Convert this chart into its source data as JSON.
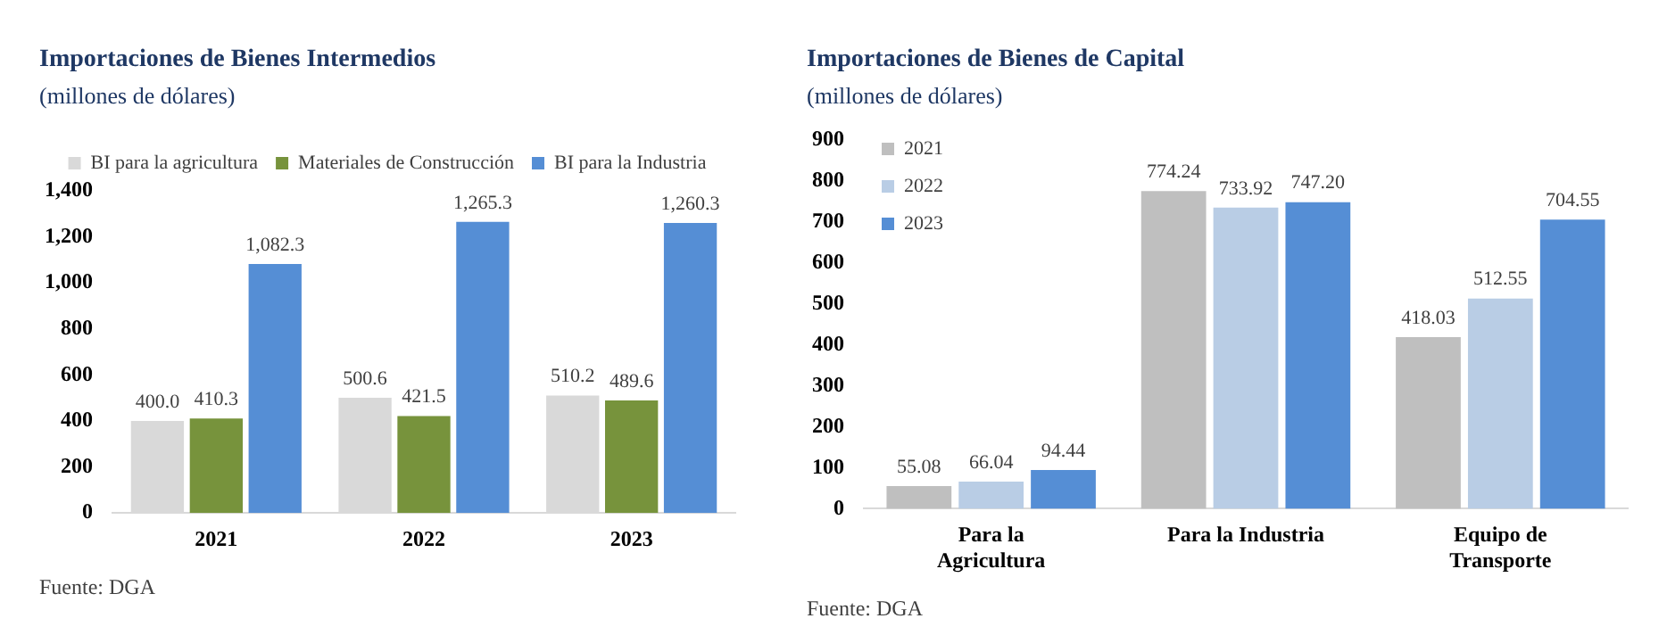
{
  "chart_data": [
    {
      "type": "bar",
      "title": "Importaciones de Bienes Intermedios",
      "subtitle": "(millones de dólares)",
      "categories": [
        "2021",
        "2022",
        "2023"
      ],
      "series": [
        {
          "name": "BI para la agricultura",
          "color": "#d9d9d9",
          "values": [
            400.0,
            500.6,
            510.2
          ],
          "value_labels": [
            "400.0",
            "500.6",
            "510.2"
          ]
        },
        {
          "name": "Materiales de Construcción",
          "color": "#77933c",
          "values": [
            410.3,
            421.5,
            489.6
          ],
          "value_labels": [
            "410.3",
            "421.5",
            "489.6"
          ]
        },
        {
          "name": "BI para la Industria",
          "color": "#558ed5",
          "values": [
            1082.3,
            1265.3,
            1260.3
          ],
          "value_labels": [
            "1,082.3",
            "1,265.3",
            "1,260.3"
          ]
        }
      ],
      "ylim": [
        0,
        1400
      ],
      "yticks": [
        0,
        {
          "value": 200,
          "label": "200"
        },
        {
          "value": 400,
          "label": "400"
        },
        {
          "value": 600,
          "label": "600"
        },
        {
          "value": 800,
          "label": "800"
        },
        {
          "value": 1000,
          "label": "1,000"
        },
        {
          "value": 1200,
          "label": "1,200"
        },
        {
          "value": 1400,
          "label": "1,400"
        }
      ],
      "grid": false,
      "legend": "top",
      "annotations": [
        "Fuente: DGA"
      ]
    },
    {
      "type": "bar",
      "title": "Importaciones de Bienes de Capital",
      "subtitle": "(millones de dólares)",
      "categories": [
        "Para la Agricultura",
        "Para la Industria",
        "Equipo de Transporte"
      ],
      "series": [
        {
          "name": "2021",
          "color": "#bfbfbf",
          "values": [
            55.08,
            774.24,
            418.03
          ]
        },
        {
          "name": "2022",
          "color": "#b9cde5",
          "values": [
            66.04,
            733.92,
            512.55
          ]
        },
        {
          "name": "2023",
          "color": "#558ed5",
          "values": [
            94.44,
            747.2,
            704.55
          ],
          "value_labels": [
            "94.44",
            "747.20",
            "704.55"
          ]
        }
      ],
      "ylim": [
        0,
        900
      ],
      "yticks": [
        0,
        100,
        200,
        300,
        400,
        500,
        600,
        700,
        800,
        900
      ],
      "data_labels": true,
      "grid": false,
      "legend": "top left",
      "annotations": [
        "Fuente: DGA"
      ]
    }
  ]
}
